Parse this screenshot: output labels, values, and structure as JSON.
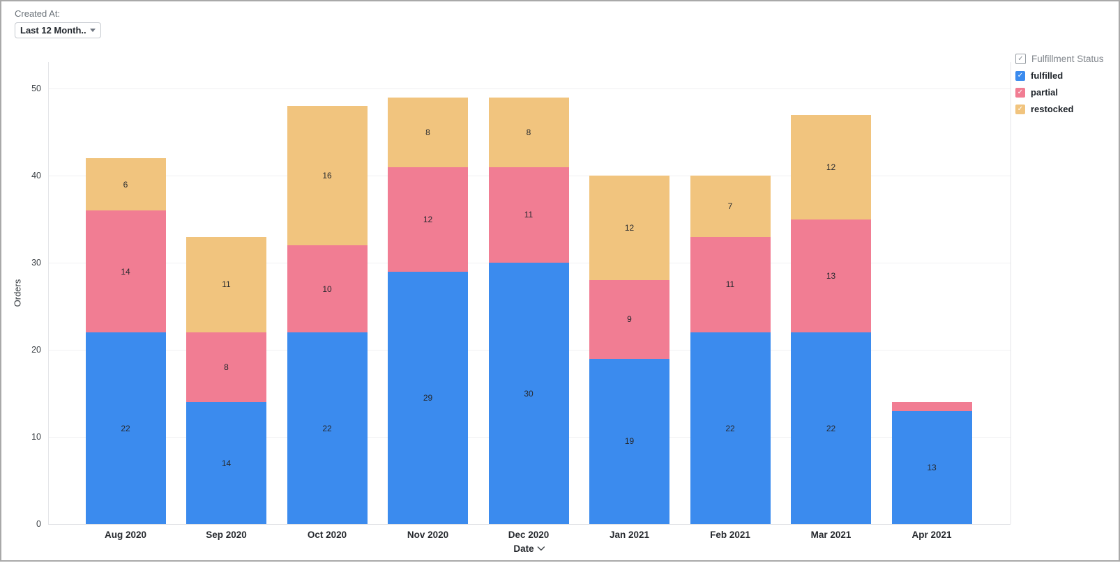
{
  "filter": {
    "label": "Created At:",
    "value": "Last 12 Month..."
  },
  "legend": {
    "title": "Fulfillment Status",
    "title_checked": true,
    "items": [
      {
        "label": "fulfilled",
        "color": "#3b8bee",
        "checked": true
      },
      {
        "label": "partial",
        "color": "#f17d93",
        "checked": true
      },
      {
        "label": "restocked",
        "color": "#f1c47e",
        "checked": true
      }
    ]
  },
  "chart_data": {
    "type": "bar",
    "stacked": true,
    "categories": [
      "Aug 2020",
      "Sep 2020",
      "Oct 2020",
      "Nov 2020",
      "Dec 2020",
      "Jan 2021",
      "Feb 2021",
      "Mar 2021",
      "Apr 2021"
    ],
    "series": [
      {
        "name": "fulfilled",
        "color": "#3b8bee",
        "values": [
          22,
          14,
          22,
          29,
          30,
          19,
          22,
          22,
          13
        ]
      },
      {
        "name": "partial",
        "color": "#f17d93",
        "values": [
          14,
          8,
          10,
          12,
          11,
          9,
          11,
          13,
          1
        ]
      },
      {
        "name": "restocked",
        "color": "#f1c47e",
        "values": [
          6,
          11,
          16,
          8,
          8,
          12,
          7,
          12,
          0
        ]
      }
    ],
    "totals": [
      42,
      33,
      48,
      49,
      49,
      40,
      40,
      47,
      14
    ],
    "xlabel": "Date",
    "ylabel": "Orders",
    "ylim": [
      0,
      50
    ],
    "yticks": [
      0,
      10,
      20,
      30,
      40,
      50
    ],
    "grid": true,
    "legend_position": "right",
    "value_labels": true
  }
}
